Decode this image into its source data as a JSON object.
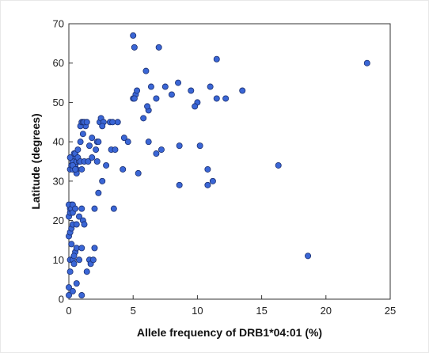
{
  "chart_data": {
    "type": "scatter",
    "title": "",
    "xlabel": "Allele frequency of DRB1*04:01 (%)",
    "ylabel": "Latitude (degrees)",
    "xlim": [
      0,
      25
    ],
    "ylim": [
      0,
      70
    ],
    "xticks": [
      "0",
      "5",
      "10",
      "15",
      "20",
      "25"
    ],
    "yticks": [
      "0",
      "10",
      "20",
      "30",
      "40",
      "50",
      "60",
      "70"
    ],
    "grid": false,
    "marker_color": "#3a66d6",
    "marker_edge": "#1b2f70",
    "x": [
      0.0,
      0.0,
      0.1,
      0.1,
      0.0,
      0.1,
      0.2,
      0.3,
      0.0,
      0.1,
      0.1,
      0.2,
      0.0,
      0.2,
      0.3,
      0.3,
      0.5,
      0.1,
      0.2,
      0.3,
      0.4,
      0.3,
      0.5,
      0.6,
      0.8,
      0.4,
      0.5,
      0.6,
      0.7,
      0.9,
      0.3,
      0.5,
      0.6,
      0.2,
      0.4,
      0.8,
      0.3,
      0.6,
      1.0,
      0.4,
      0.6,
      0.8,
      1.0,
      1.1,
      0.6,
      1.0,
      1.2,
      1.5,
      1.8,
      2.2,
      0.1,
      0.3,
      0.5,
      0.7,
      0.9,
      1.1,
      1.3,
      0.9,
      1.0,
      1.1,
      1.2,
      1.4,
      1.6,
      1.8,
      1.0,
      1.2,
      1.4,
      1.6,
      1.7,
      1.9,
      2.0,
      2.2,
      2.4,
      2.1,
      2.3,
      2.5,
      2.7,
      2.0,
      2.3,
      2.6,
      2.9,
      3.3,
      3.6,
      2.6,
      3.2,
      3.5,
      3.8,
      4.3,
      4.6,
      3.4,
      4.2,
      5.4,
      6.2,
      6.8,
      7.2,
      8.6,
      10.2,
      10.8,
      11.2,
      8.6,
      10.8,
      11.0,
      11.5,
      13.5,
      12.2,
      11.5,
      9.5,
      10.0,
      9.8,
      8.5,
      8.0,
      7.5,
      6.8,
      6.2,
      5.8,
      5.0,
      5.2,
      5.3,
      5.1,
      6.0,
      6.4,
      7.0,
      5.1,
      5.0,
      6.1,
      16.3,
      18.6,
      23.2
    ],
    "y": [
      1.0,
      3.0,
      7.0,
      10.0,
      16.0,
      17.0,
      18.0,
      19.0,
      21.0,
      22.0,
      23.0,
      24.0,
      24.0,
      23.0,
      24.0,
      22.0,
      23.0,
      33.0,
      34.0,
      33.0,
      36.0,
      35.0,
      34.0,
      35.0,
      35.0,
      37.0,
      37.0,
      33.0,
      36.0,
      35.0,
      10.0,
      12.0,
      13.0,
      14.0,
      11.0,
      10.0,
      2.0,
      4.0,
      1.0,
      9.0,
      19.0,
      21.0,
      23.0,
      20.0,
      32.0,
      33.0,
      35.0,
      35.0,
      36.0,
      35.0,
      36.0,
      34.0,
      33.0,
      38.0,
      40.0,
      42.0,
      44.0,
      44.0,
      45.0,
      45.0,
      45.0,
      45.0,
      39.0,
      41.0,
      13.0,
      19.0,
      7.0,
      10.0,
      9.0,
      10.0,
      13.0,
      40.0,
      45.0,
      38.0,
      40.0,
      46.0,
      45.0,
      23.0,
      27.0,
      30.0,
      34.0,
      38.0,
      38.0,
      44.0,
      45.0,
      23.0,
      45.0,
      41.0,
      40.0,
      45.0,
      33.0,
      32.0,
      40.0,
      37.0,
      38.0,
      39.0,
      39.0,
      29.0,
      30.0,
      29.0,
      33.0,
      54.0,
      51.0,
      53.0,
      51.0,
      61.0,
      53.0,
      50.0,
      49.0,
      55.0,
      52.0,
      54.0,
      51.0,
      48.0,
      46.0,
      51.0,
      52.0,
      53.0,
      51.0,
      58.0,
      54.0,
      64.0,
      64.0,
      67.0,
      49.0,
      34.0,
      11.0,
      60.0
    ]
  }
}
